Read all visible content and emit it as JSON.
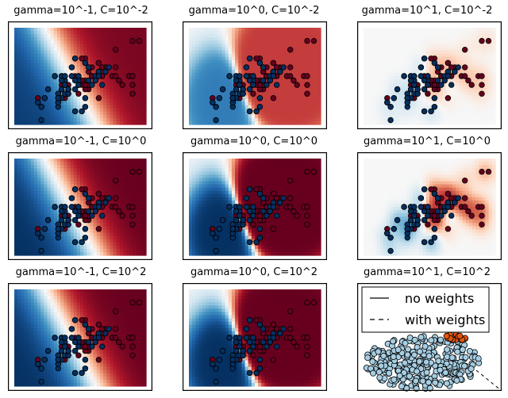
{
  "chart_data": [
    {
      "type": "heatmap",
      "title": "gamma=10^-1, C=10^-2",
      "decision_field": {
        "gamma": 0.1,
        "C": 0.01,
        "contrast": 0.95
      },
      "dots": "iris",
      "legend": null
    },
    {
      "type": "heatmap",
      "title": "gamma=10^0, C=10^-2",
      "decision_field": {
        "gamma": 1.0,
        "C": 0.01,
        "contrast": 0.7
      },
      "dots": "iris",
      "legend": null
    },
    {
      "type": "heatmap",
      "title": "gamma=10^1, C=10^-2",
      "decision_field": {
        "gamma": 10.0,
        "C": 0.01,
        "contrast": 0.35
      },
      "dots": "iris",
      "legend": null
    },
    {
      "type": "heatmap",
      "title": "gamma=10^-1, C=10^0",
      "decision_field": {
        "gamma": 0.1,
        "C": 1.0,
        "contrast": 1.0
      },
      "dots": "iris",
      "legend": null
    },
    {
      "type": "heatmap",
      "title": "gamma=10^0, C=10^0",
      "decision_field": {
        "gamma": 1.0,
        "C": 1.0,
        "contrast": 1.0
      },
      "dots": "iris",
      "legend": null
    },
    {
      "type": "heatmap",
      "title": "gamma=10^1, C=10^0",
      "decision_field": {
        "gamma": 10.0,
        "C": 1.0,
        "contrast": 0.8
      },
      "dots": "iris",
      "legend": null
    },
    {
      "type": "heatmap",
      "title": "gamma=10^-1, C=10^2",
      "decision_field": {
        "gamma": 0.1,
        "C": 100.0,
        "contrast": 1.0
      },
      "dots": "iris",
      "legend": null
    },
    {
      "type": "heatmap",
      "title": "gamma=10^0, C=10^2",
      "decision_field": {
        "gamma": 1.0,
        "C": 100.0,
        "contrast": 1.0
      },
      "dots": "iris",
      "legend": null
    },
    {
      "type": "scatter",
      "title": "gamma=10^1, C=10^2",
      "decision_field": null,
      "dots": "cloud",
      "legend": {
        "placement": "upper",
        "entries": [
          "no weights",
          "with weights"
        ]
      }
    }
  ],
  "colors": {
    "red": "#67001f",
    "blue": "#053061",
    "light_blue": "#a6cee3",
    "orange": "#e6550d",
    "dot_edge": "#000000"
  },
  "iris": {
    "red": [
      [
        6.3,
        3.3
      ],
      [
        5.8,
        2.7
      ],
      [
        7.1,
        3.0
      ],
      [
        6.3,
        2.9
      ],
      [
        6.5,
        3.0
      ],
      [
        7.6,
        3.0
      ],
      [
        4.9,
        2.5
      ],
      [
        7.3,
        2.9
      ],
      [
        6.7,
        2.5
      ],
      [
        7.2,
        3.6
      ],
      [
        6.5,
        3.2
      ],
      [
        6.4,
        2.7
      ],
      [
        6.8,
        3.0
      ],
      [
        5.7,
        2.5
      ],
      [
        5.8,
        2.8
      ],
      [
        6.4,
        3.2
      ],
      [
        6.5,
        3.0
      ],
      [
        7.7,
        3.8
      ],
      [
        7.7,
        2.6
      ],
      [
        6.0,
        2.2
      ],
      [
        6.9,
        3.2
      ],
      [
        5.6,
        2.8
      ],
      [
        7.7,
        2.8
      ],
      [
        6.3,
        2.7
      ],
      [
        6.7,
        3.3
      ],
      [
        7.2,
        3.2
      ],
      [
        6.2,
        2.8
      ],
      [
        6.1,
        3.0
      ],
      [
        6.4,
        2.8
      ],
      [
        7.2,
        3.0
      ],
      [
        7.4,
        2.8
      ],
      [
        7.9,
        3.8
      ],
      [
        6.4,
        2.8
      ],
      [
        6.3,
        2.8
      ],
      [
        6.1,
        2.6
      ],
      [
        7.7,
        3.0
      ],
      [
        6.3,
        3.4
      ],
      [
        6.4,
        3.1
      ],
      [
        6.0,
        3.0
      ],
      [
        6.9,
        3.1
      ],
      [
        6.7,
        3.1
      ],
      [
        6.9,
        3.1
      ],
      [
        5.8,
        2.7
      ],
      [
        6.8,
        3.2
      ],
      [
        6.7,
        3.3
      ],
      [
        6.7,
        3.0
      ],
      [
        6.3,
        2.5
      ],
      [
        6.5,
        3.0
      ],
      [
        6.2,
        3.4
      ],
      [
        5.9,
        3.0
      ],
      [
        5.7,
        2.8
      ],
      [
        5.5,
        2.4
      ],
      [
        5.6,
        3.0
      ],
      [
        6.0,
        2.7
      ],
      [
        5.4,
        3.0
      ],
      [
        6.0,
        3.4
      ],
      [
        6.7,
        3.1
      ],
      [
        6.3,
        2.3
      ],
      [
        5.6,
        3.0
      ],
      [
        5.5,
        2.5
      ],
      [
        5.5,
        2.6
      ],
      [
        6.1,
        3.0
      ],
      [
        5.8,
        2.6
      ],
      [
        5.0,
        2.3
      ],
      [
        5.6,
        2.7
      ],
      [
        5.7,
        3.0
      ],
      [
        5.7,
        2.9
      ],
      [
        6.2,
        2.9
      ],
      [
        5.1,
        2.5
      ],
      [
        6.1,
        2.8
      ]
    ],
    "blue": [
      [
        7.0,
        3.2
      ],
      [
        6.4,
        3.2
      ],
      [
        6.9,
        3.1
      ],
      [
        5.5,
        2.3
      ],
      [
        6.5,
        2.8
      ],
      [
        5.7,
        2.8
      ],
      [
        6.3,
        3.3
      ],
      [
        4.9,
        2.4
      ],
      [
        6.6,
        2.9
      ],
      [
        5.2,
        2.7
      ],
      [
        5.0,
        2.0
      ],
      [
        5.9,
        3.0
      ],
      [
        6.0,
        2.2
      ],
      [
        6.1,
        2.9
      ],
      [
        5.6,
        2.9
      ],
      [
        6.7,
        3.1
      ],
      [
        5.6,
        3.0
      ],
      [
        5.8,
        2.7
      ],
      [
        6.2,
        2.2
      ],
      [
        5.6,
        2.5
      ],
      [
        5.9,
        3.2
      ],
      [
        6.1,
        2.8
      ],
      [
        6.3,
        2.5
      ],
      [
        6.1,
        2.8
      ],
      [
        6.4,
        2.9
      ],
      [
        6.6,
        3.0
      ],
      [
        6.8,
        2.8
      ],
      [
        6.7,
        3.0
      ],
      [
        6.0,
        2.9
      ],
      [
        5.7,
        2.6
      ],
      [
        5.5,
        2.4
      ],
      [
        5.8,
        2.7
      ],
      [
        6.0,
        2.7
      ],
      [
        5.4,
        3.0
      ],
      [
        6.0,
        3.4
      ],
      [
        5.5,
        2.6
      ],
      [
        5.1,
        2.5
      ],
      [
        5.7,
        2.9
      ],
      [
        5.2,
        2.7
      ],
      [
        4.9,
        2.4
      ],
      [
        5.6,
        2.9
      ],
      [
        6.2,
        2.2
      ],
      [
        5.9,
        3.2
      ],
      [
        6.6,
        2.9
      ],
      [
        5.0,
        2.3
      ],
      [
        6.3,
        2.3
      ],
      [
        5.5,
        2.5
      ],
      [
        5.8,
        2.6
      ],
      [
        6.1,
        3.0
      ],
      [
        5.7,
        2.8
      ],
      [
        5.6,
        2.7
      ],
      [
        5.7,
        3.0
      ],
      [
        5.5,
        2.5
      ],
      [
        5.8,
        2.7
      ]
    ]
  }
}
